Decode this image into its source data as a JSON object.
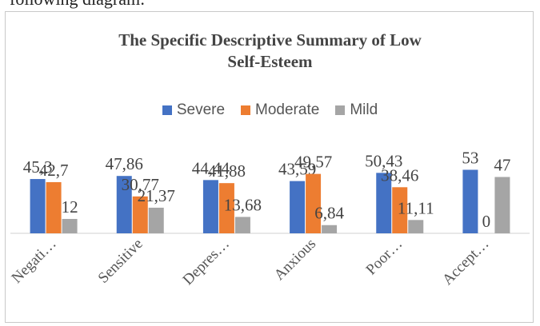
{
  "page": {
    "clipped_text": "following diagram:"
  },
  "chart_data": {
    "type": "bar",
    "title": "The Specific Descriptive Summary of Low Self-Esteem",
    "title_lines": [
      "The Specific Descriptive Summary of Low",
      "Self-Esteem"
    ],
    "categories": [
      "Negati…",
      "Sensitive",
      "Depres…",
      "Anxious",
      "Poor…",
      "Accept…"
    ],
    "series": [
      {
        "name": "Severe",
        "color": "#4472C4",
        "values": [
          45.3,
          47.86,
          44.44,
          43.59,
          50.43,
          53
        ],
        "labels": [
          "45,3",
          "47,86",
          "44,44",
          "43,59",
          "50,43",
          "53"
        ]
      },
      {
        "name": "Moderate",
        "color": "#ED7D31",
        "values": [
          42.7,
          30.77,
          41.88,
          49.57,
          38.46,
          0
        ],
        "labels": [
          "42,7",
          "30,77",
          "41,88",
          "49,57",
          "38,46",
          "0"
        ]
      },
      {
        "name": "Mild",
        "color": "#A5A5A5",
        "values": [
          12,
          21.37,
          13.68,
          6.84,
          11.11,
          47
        ],
        "labels": [
          "12",
          "21,37",
          "13,68",
          "6,84",
          "11,11",
          "47"
        ]
      }
    ],
    "ylim": [
      0,
      60
    ],
    "legend": "top-center",
    "grid": false
  }
}
